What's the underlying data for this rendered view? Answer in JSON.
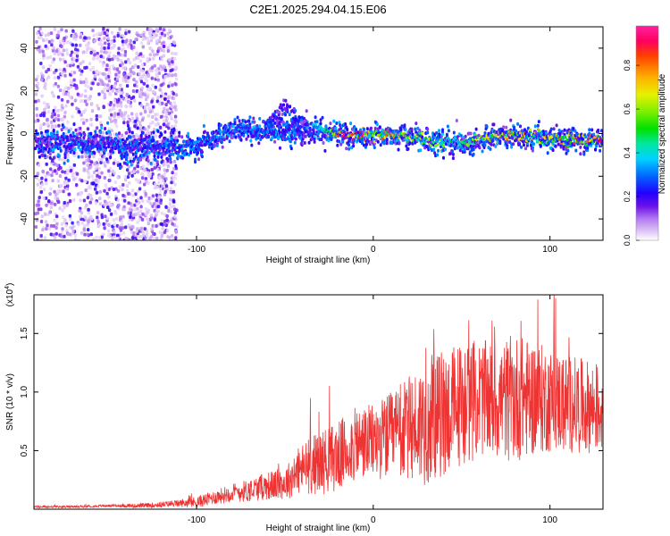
{
  "title": "C2E1.2025.294.04.15.E06",
  "chart_data": [
    {
      "type": "heatmap",
      "xlabel": "Height of straight line (km)",
      "ylabel": "Frequency (Hz)",
      "xlim": [
        -192,
        130
      ],
      "ylim": [
        -50,
        50
      ],
      "xticks": [
        -100,
        0,
        100
      ],
      "yticks": [
        -40,
        -20,
        0,
        20,
        40
      ],
      "colorbar": {
        "label": "Normalized spectral amplitude",
        "range": [
          0,
          0.98
        ],
        "ticks": [
          "0.0",
          "0.2",
          "0.4",
          "0.6",
          "0.8"
        ]
      },
      "ridge": {
        "description_x": [
          -192,
          -150,
          -140,
          -120,
          -100,
          -80,
          -60,
          -50,
          -40,
          -30,
          -20,
          -10,
          0,
          10,
          20,
          30,
          40,
          50,
          60,
          70,
          80,
          90,
          100,
          110,
          120,
          130
        ],
        "center_hz": [
          -3,
          -3,
          -6,
          -6,
          -5,
          3,
          2,
          1,
          3,
          2,
          0,
          0,
          0,
          0,
          -1,
          -2,
          -3,
          -4,
          -2,
          0,
          -1,
          -1,
          -2,
          -2,
          -2,
          -2
        ],
        "peak_amplitude": [
          0.2,
          0.2,
          0.25,
          0.3,
          0.35,
          0.35,
          0.35,
          0.35,
          0.35,
          0.45,
          0.95,
          0.95,
          0.85,
          0.8,
          0.7,
          0.7,
          0.55,
          0.55,
          0.75,
          0.8,
          0.8,
          0.75,
          0.8,
          0.85,
          0.9,
          0.9
        ]
      }
    },
    {
      "type": "line",
      "xlabel": "Height of straight line (km)",
      "ylabel": "SNR (10 * v/v)",
      "multiplier": "(x10",
      "multiplier_exp": "4",
      "multiplier_close": ")",
      "xlim": [
        -192,
        130
      ],
      "ylim": [
        0,
        1.83
      ],
      "xticks": [
        -100,
        0,
        100
      ],
      "yticks": [
        0.5,
        1.0,
        1.5
      ],
      "ytick_labels": [
        "0.5",
        "1.0",
        "1.5"
      ],
      "series": [
        {
          "name": "SNR",
          "color": "#ee3333",
          "x": [
            -192,
            -170,
            -150,
            -130,
            -110,
            -100,
            -90,
            -80,
            -70,
            -60,
            -50,
            -40,
            -30,
            -20,
            -10,
            0,
            10,
            20,
            30,
            40,
            50,
            60,
            70,
            80,
            90,
            100,
            110,
            120,
            130
          ],
          "mean": [
            0.02,
            0.02,
            0.03,
            0.03,
            0.05,
            0.06,
            0.1,
            0.14,
            0.16,
            0.2,
            0.22,
            0.35,
            0.4,
            0.45,
            0.55,
            0.58,
            0.62,
            0.68,
            0.75,
            0.82,
            0.9,
            0.95,
            0.92,
            0.95,
            0.95,
            0.93,
            0.9,
            0.88,
            0.85
          ],
          "amplitude": [
            0.01,
            0.01,
            0.01,
            0.02,
            0.03,
            0.05,
            0.06,
            0.08,
            0.1,
            0.12,
            0.14,
            0.22,
            0.28,
            0.3,
            0.32,
            0.32,
            0.38,
            0.45,
            0.55,
            0.55,
            0.55,
            0.5,
            0.5,
            0.55,
            0.5,
            0.45,
            0.42,
            0.4,
            0.38
          ]
        }
      ]
    }
  ]
}
